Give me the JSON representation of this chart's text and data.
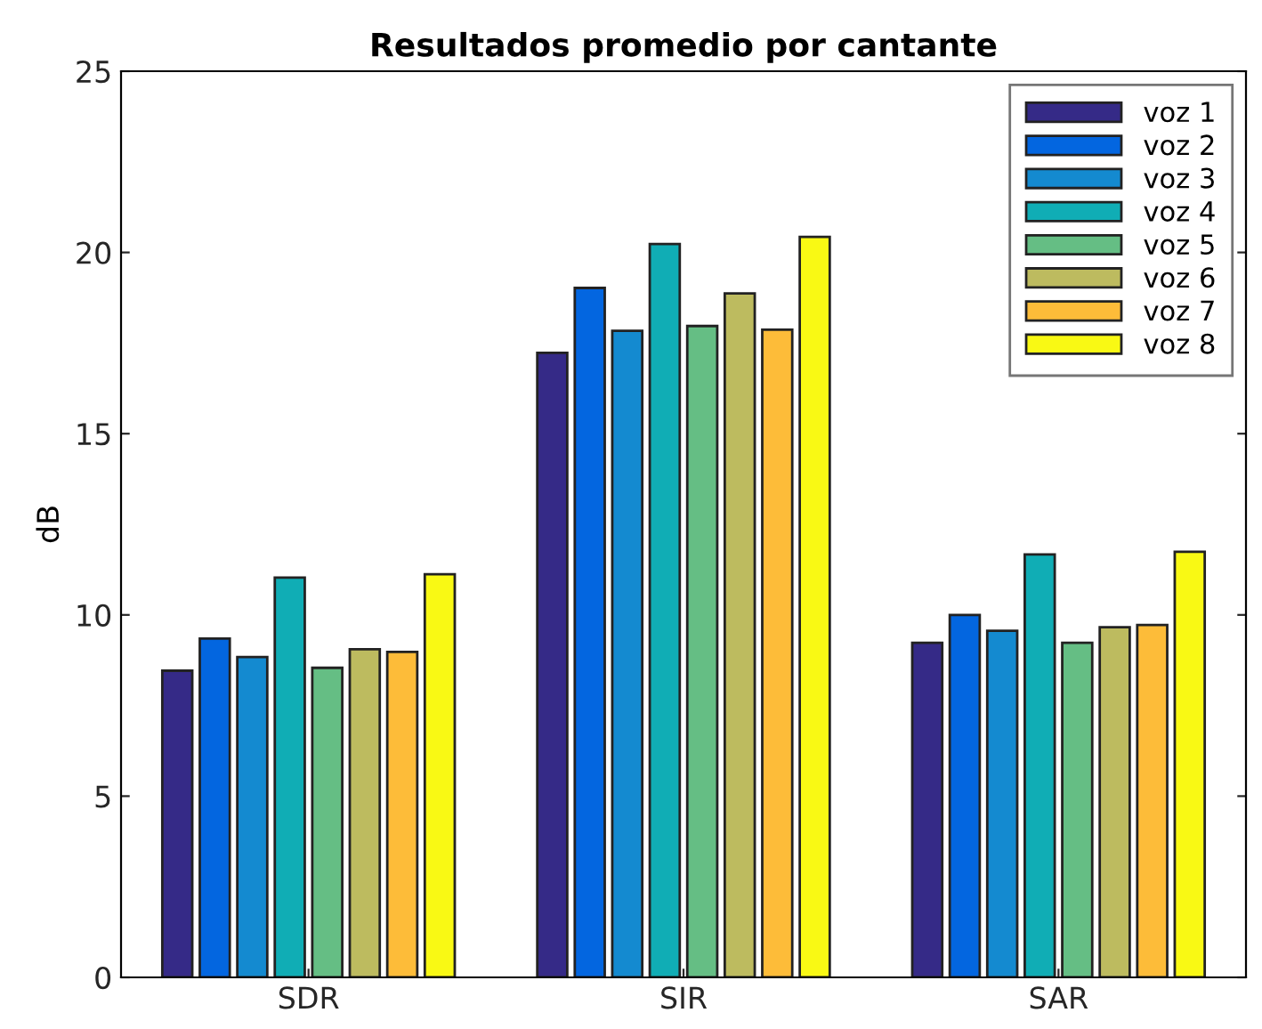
{
  "chart_data": {
    "type": "bar",
    "title": "Resultados promedio por cantante",
    "ylabel": "dB",
    "categories": [
      "SDR",
      "SIR",
      "SAR"
    ],
    "series": [
      {
        "name": "voz 1",
        "color": "#352a87",
        "values": [
          8.46,
          17.23,
          9.23
        ]
      },
      {
        "name": "voz 2",
        "color": "#0366e0",
        "values": [
          9.35,
          19.02,
          10.0
        ]
      },
      {
        "name": "voz 3",
        "color": "#148ad0",
        "values": [
          8.84,
          17.84,
          9.56
        ]
      },
      {
        "name": "voz 4",
        "color": "#10adb5",
        "values": [
          11.03,
          20.23,
          11.67
        ]
      },
      {
        "name": "voz 5",
        "color": "#65be84",
        "values": [
          8.54,
          17.97,
          9.23
        ]
      },
      {
        "name": "voz 6",
        "color": "#bdbb5f",
        "values": [
          9.05,
          18.87,
          9.66
        ]
      },
      {
        "name": "voz 7",
        "color": "#fdbc39",
        "values": [
          8.98,
          17.87,
          9.72
        ]
      },
      {
        "name": "voz 8",
        "color": "#f9f914",
        "values": [
          11.12,
          20.43,
          11.74
        ]
      }
    ],
    "ylim": [
      0,
      25
    ],
    "yticks": [
      0,
      5,
      10,
      15,
      20,
      25
    ],
    "grid": false,
    "legend": "top right"
  }
}
